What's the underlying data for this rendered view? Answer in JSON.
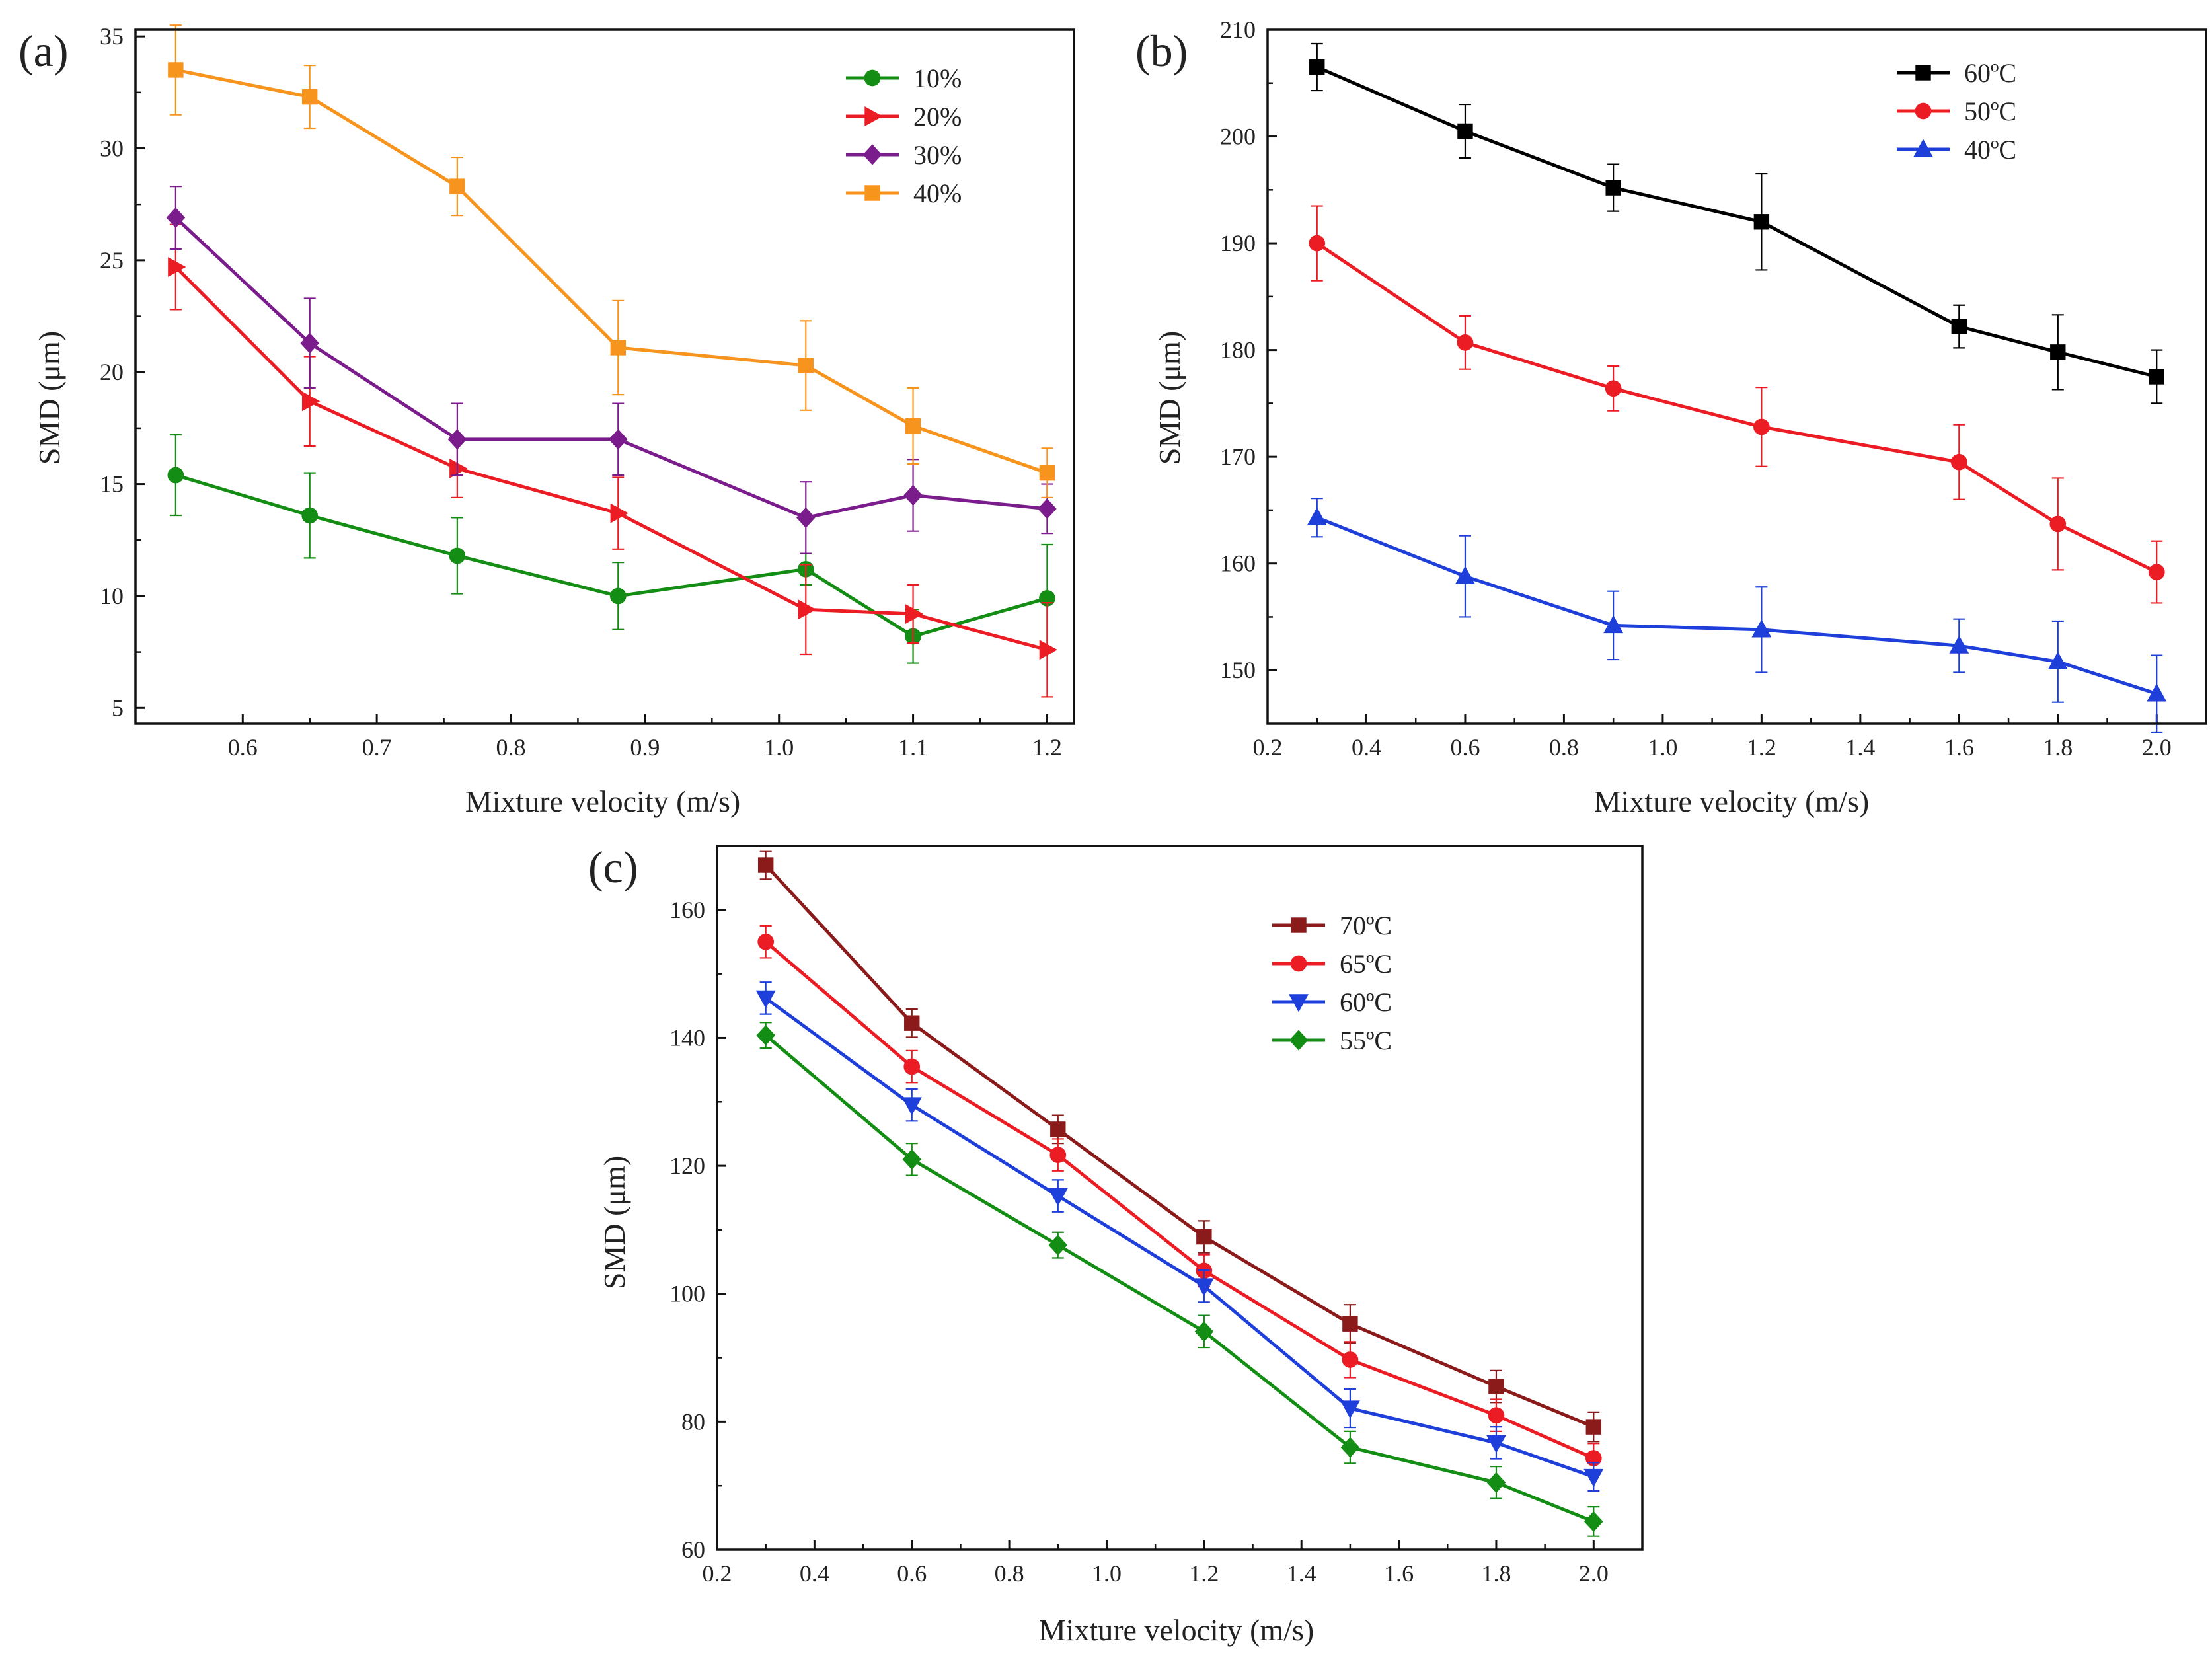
{
  "chart_data": [
    {
      "panel": "(a)",
      "type": "line",
      "xlabel": "Mixture velocity (m/s)",
      "ylabel": "SMD (μm)",
      "xlim": [
        0.52,
        1.22
      ],
      "ylim": [
        4.3,
        35.3
      ],
      "xticks": [
        0.6,
        0.7,
        0.8,
        0.9,
        1.0,
        1.1,
        1.2
      ],
      "yticks": [
        5,
        10,
        15,
        20,
        25,
        30,
        35
      ],
      "tick_decimals": 1,
      "legend_position": "top-right",
      "x": [
        0.55,
        0.65,
        0.76,
        0.88,
        1.02,
        1.1,
        1.2
      ],
      "series": [
        {
          "name": "10%",
          "color": "#138d13",
          "marker": "circle",
          "values": [
            15.4,
            13.6,
            11.8,
            10.0,
            11.2,
            8.2,
            9.9
          ],
          "errors": [
            1.8,
            1.9,
            1.7,
            1.5,
            0.7,
            1.2,
            2.4
          ]
        },
        {
          "name": "20%",
          "color": "#ec1c24",
          "marker": "triangle-right",
          "values": [
            24.7,
            18.7,
            15.7,
            13.7,
            9.4,
            9.2,
            7.6
          ],
          "errors": [
            1.9,
            2.0,
            1.3,
            1.6,
            2.0,
            1.3,
            2.1
          ]
        },
        {
          "name": "30%",
          "color": "#7b1c8c",
          "marker": "diamond",
          "values": [
            26.9,
            21.3,
            17.0,
            17.0,
            13.5,
            14.5,
            13.9
          ],
          "errors": [
            1.4,
            2.0,
            1.6,
            1.6,
            1.6,
            1.6,
            1.1
          ]
        },
        {
          "name": "40%",
          "color": "#f7941d",
          "marker": "square",
          "values": [
            33.5,
            32.3,
            28.3,
            21.1,
            20.3,
            17.6,
            15.5
          ],
          "errors": [
            2.0,
            1.4,
            1.3,
            2.1,
            2.0,
            1.7,
            1.1
          ]
        }
      ]
    },
    {
      "panel": "(b)",
      "type": "line",
      "xlabel": "Mixture velocity (m/s)",
      "ylabel": "SMD (μm)",
      "xlim": [
        0.2,
        2.1
      ],
      "ylim": [
        145,
        210
      ],
      "xticks": [
        0.2,
        0.4,
        0.6,
        0.8,
        1.0,
        1.2,
        1.4,
        1.6,
        1.8,
        2.0
      ],
      "yticks": [
        150,
        160,
        170,
        180,
        190,
        200,
        210
      ],
      "tick_decimals": 1,
      "legend_position": "top-right",
      "x": [
        0.3,
        0.6,
        0.9,
        1.2,
        1.6,
        1.8,
        2.0
      ],
      "series": [
        {
          "name": "60ºC",
          "color": "#000000",
          "marker": "square",
          "values": [
            206.5,
            200.5,
            195.2,
            192.0,
            182.2,
            179.8,
            177.5
          ],
          "errors": [
            2.2,
            2.5,
            2.2,
            4.5,
            2.0,
            3.5,
            2.5
          ]
        },
        {
          "name": "50ºC",
          "color": "#ec1c24",
          "marker": "circle",
          "values": [
            190.0,
            180.7,
            176.4,
            172.8,
            169.5,
            163.7,
            159.2
          ],
          "errors": [
            3.5,
            2.5,
            2.1,
            3.7,
            3.5,
            4.3,
            2.9
          ]
        },
        {
          "name": "40ºC",
          "color": "#1e3fd9",
          "marker": "triangle-up",
          "values": [
            164.3,
            158.8,
            154.2,
            153.8,
            152.3,
            150.8,
            147.8
          ],
          "errors": [
            1.8,
            3.8,
            3.2,
            4.0,
            2.5,
            3.8,
            3.6
          ]
        }
      ]
    },
    {
      "panel": "(c)",
      "type": "line",
      "xlabel": "Mixture velocity (m/s)",
      "ylabel": "SMD (μm)",
      "xlim": [
        0.2,
        2.1
      ],
      "ylim": [
        60,
        170
      ],
      "xticks": [
        0.2,
        0.4,
        0.6,
        0.8,
        1.0,
        1.2,
        1.4,
        1.6,
        1.8,
        2.0
      ],
      "yticks": [
        60,
        80,
        100,
        120,
        140,
        160
      ],
      "tick_decimals": 1,
      "legend_position": "top-center",
      "x": [
        0.3,
        0.6,
        0.9,
        1.2,
        1.5,
        1.8,
        2.0
      ],
      "series": [
        {
          "name": "70ºC",
          "color": "#8b1a1a",
          "marker": "square",
          "values": [
            167.0,
            142.3,
            125.7,
            108.9,
            95.3,
            85.5,
            79.2
          ],
          "errors": [
            2.2,
            2.2,
            2.2,
            2.5,
            3.0,
            2.5,
            2.3
          ]
        },
        {
          "name": "65ºC",
          "color": "#ec1c24",
          "marker": "circle",
          "values": [
            155.0,
            135.5,
            121.7,
            103.6,
            89.7,
            81.0,
            74.3
          ],
          "errors": [
            2.5,
            2.5,
            2.5,
            2.5,
            2.8,
            2.5,
            2.3
          ]
        },
        {
          "name": "60ºC",
          "color": "#1e3fd9",
          "marker": "triangle-down",
          "values": [
            146.2,
            129.5,
            115.3,
            101.2,
            82.1,
            76.7,
            71.4
          ],
          "errors": [
            2.5,
            2.5,
            2.5,
            2.5,
            3.0,
            2.5,
            2.2
          ]
        },
        {
          "name": "55ºC",
          "color": "#138d13",
          "marker": "diamond",
          "values": [
            140.4,
            121.0,
            107.6,
            94.1,
            76.0,
            70.5,
            64.4
          ],
          "errors": [
            2.0,
            2.5,
            2.0,
            2.5,
            2.5,
            2.5,
            2.3
          ]
        }
      ]
    }
  ]
}
